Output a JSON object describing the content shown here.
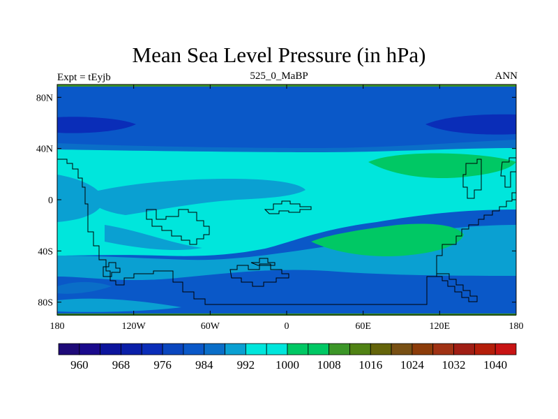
{
  "chart_data": {
    "type": "heatmap",
    "title": "Mean Sea Level Pressure (in hPa)",
    "left_subtitle": "Expt = tEyjb",
    "center_subtitle": "525_0_MaBP",
    "right_subtitle": "ANN",
    "x_ticks": [
      "180",
      "120W",
      "60W",
      "0",
      "60E",
      "120E",
      "180"
    ],
    "x_tick_values": [
      -180,
      -120,
      -60,
      0,
      60,
      120,
      180
    ],
    "y_ticks": [
      "80N",
      "40N",
      "0",
      "40S",
      "80S"
    ],
    "y_tick_values": [
      80,
      40,
      0,
      -40,
      -80
    ],
    "xlim": [
      -180,
      180
    ],
    "ylim": [
      -90,
      90
    ],
    "colorbar": {
      "labels": [
        "960",
        "968",
        "976",
        "984",
        "992",
        "1000",
        "1008",
        "1016",
        "1024",
        "1032",
        "1040"
      ],
      "label_values": [
        960,
        968,
        976,
        984,
        992,
        1000,
        1008,
        1016,
        1024,
        1032,
        1040
      ],
      "edges": [
        956,
        960,
        964,
        968,
        972,
        976,
        980,
        984,
        988,
        992,
        996,
        1000,
        1004,
        1008,
        1012,
        1016,
        1020,
        1024,
        1028,
        1032,
        1036,
        1040,
        1044
      ],
      "colors": [
        "#1e0a78",
        "#1a0a8c",
        "#0c149c",
        "#0a1fa8",
        "#0a2db8",
        "#0a46be",
        "#0a58c8",
        "#0a6ec8",
        "#0aa0d2",
        "#00e6dc",
        "#00e6dc",
        "#00c864",
        "#00c864",
        "#3c9628",
        "#508214",
        "#64640a",
        "#785014",
        "#8c3c0a",
        "#a03214",
        "#a01e14",
        "#b41e0a",
        "#c81414"
      ]
    },
    "field_levels": [
      {
        "range": [
          968,
          980
        ],
        "color": "#0a2db8",
        "region": "deep subpolar troughs near 60N"
      },
      {
        "range": [
          980,
          984
        ],
        "color": "#0a58c8",
        "region": "high latitudes"
      },
      {
        "range": [
          984,
          988
        ],
        "color": "#0a6ec8",
        "region": "southern and northern mid-latitudes"
      },
      {
        "range": [
          988,
          992
        ],
        "color": "#0aa0d2",
        "region": "subtropics"
      },
      {
        "range": [
          992,
          1000
        ],
        "color": "#00e6dc",
        "region": "tropics and subtropics"
      },
      {
        "range": [
          1000,
          1008
        ],
        "color": "#00c864",
        "region": "subtropical highs near 30N and 30S east"
      }
    ]
  }
}
